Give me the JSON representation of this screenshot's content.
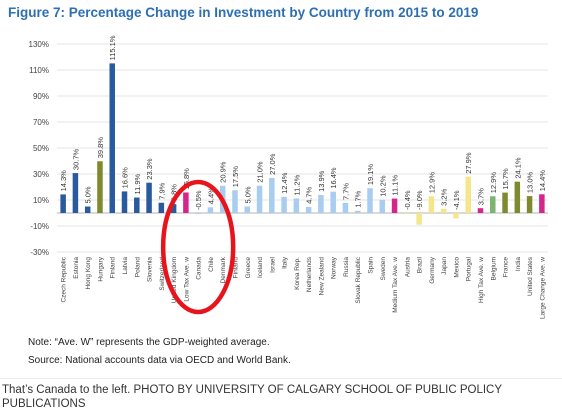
{
  "caption": "That’s Canada to the left. PHOTO BY UNIVERSITY OF CALGARY SCHOOL OF PUBLIC POLICY PUBLICATIONS",
  "notes": {
    "note": "Note: “Ave. W” represents the GDP-weighted average.",
    "source": "Source: National accounts data via OECD and World Bank."
  },
  "colors": {
    "dark_blue": "#2a5a9e",
    "light_blue": "#a9cdf0",
    "magenta": "#d4268a",
    "yellow": "#f4e68a",
    "olive": "#7f8a2e",
    "green": "#7bb56e",
    "annotation": "#e8141c"
  },
  "chart_data": {
    "type": "bar",
    "title": "Figure 7: Percentage Change in Investment by Country from 2015 to 2019",
    "xlabel": "",
    "ylabel": "",
    "ylim": [
      -30,
      130
    ],
    "yticks": [
      -30,
      -10,
      10,
      30,
      50,
      70,
      90,
      110,
      130
    ],
    "ytick_labels": [
      "-30%",
      "-10%",
      "10%",
      "30%",
      "50%",
      "70%",
      "90%",
      "110%",
      "130%"
    ],
    "grid": true,
    "legend": "none",
    "annotation": "red ellipse circling the Canada bar",
    "highlighted_category": "Canada",
    "categories": [
      "Czech Republic",
      "Estonia",
      "Hong Kong",
      "Hungary",
      "Finland",
      "Latvia",
      "Poland",
      "Slovenia",
      "Switzerland",
      "United Kingdom",
      "Low Tax Ave. w",
      "Canada",
      "Chile",
      "Denmark",
      "Finland",
      "Greece",
      "Iceland",
      "Israel",
      "Italy",
      "Korea Rep.",
      "Netherlands",
      "New Zealand",
      "Norway",
      "Russia",
      "Slovak Republic",
      "Spain",
      "Sweden",
      "Medium Tax Ave. w",
      "Austria",
      "Brazil",
      "Germany",
      "Japan",
      "Mexico",
      "Portugal",
      "High Tax Ave. w",
      "Belgium",
      "France",
      "India",
      "United States",
      "Large Change Ave. w"
    ],
    "values": [
      14.3,
      30.7,
      5.0,
      39.8,
      115.1,
      16.6,
      11.9,
      23.3,
      7.9,
      6.8,
      15.8,
      -0.5,
      4.4,
      20.9,
      17.5,
      5.0,
      21.0,
      27.0,
      12.4,
      11.2,
      4.7,
      13.9,
      16.4,
      7.7,
      1.7,
      19.1,
      10.2,
      11.1,
      -0.4,
      -9.0,
      12.9,
      3.2,
      -4.1,
      27.9,
      3.7,
      12.9,
      15.7,
      24.1,
      13.0,
      14.4
    ],
    "data_labels": [
      "14.3%",
      "30.7%",
      "5.0%",
      "39.8%",
      "115.1%",
      "16.6%",
      "11.9%",
      "23.3%",
      "7.9%",
      "6.8%",
      "15.8%",
      "-0.5%",
      "4.4%",
      "20.9%",
      "17.5%",
      "5.0%",
      "21.0%",
      "27.0%",
      "12.4%",
      "11.2%",
      "4.7%",
      "13.9%",
      "16.4%",
      "7.7%",
      "1.7%",
      "19.1%",
      "10.2%",
      "11.1%",
      "-0.4%",
      "-9.0%",
      "12.9%",
      "3.2%",
      "-4.1%",
      "27.9%",
      "3.7%",
      "12.9%",
      "15.7%",
      "24.1%",
      "13.0%",
      "14.4%"
    ],
    "bar_colors": [
      "dark_blue",
      "dark_blue",
      "dark_blue",
      "olive",
      "dark_blue",
      "dark_blue",
      "dark_blue",
      "dark_blue",
      "dark_blue",
      "dark_blue",
      "magenta",
      "light_blue",
      "light_blue",
      "light_blue",
      "light_blue",
      "light_blue",
      "light_blue",
      "light_blue",
      "light_blue",
      "light_blue",
      "light_blue",
      "light_blue",
      "light_blue",
      "light_blue",
      "light_blue",
      "light_blue",
      "light_blue",
      "magenta",
      "yellow",
      "yellow",
      "yellow",
      "yellow",
      "yellow",
      "yellow",
      "magenta",
      "green",
      "olive",
      "olive",
      "olive",
      "magenta"
    ]
  }
}
